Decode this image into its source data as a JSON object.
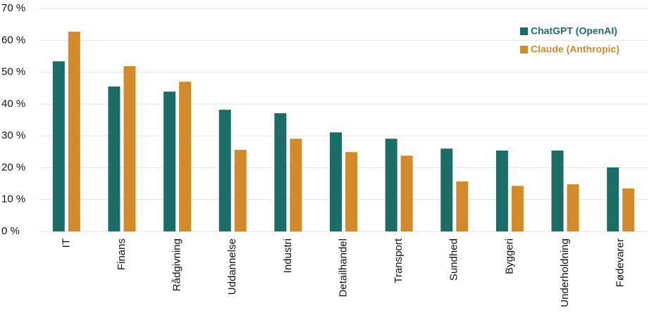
{
  "chart_data": {
    "type": "bar",
    "categories": [
      "IT",
      "Finans",
      "Rådgivning",
      "Uddannelse",
      "Industri",
      "Detailhandel",
      "Transport",
      "Sundhed",
      "Byggeri",
      "Underholdning",
      "Fødevarer"
    ],
    "series": [
      {
        "name": "ChatGPT (OpenAI)",
        "color": "#1b6e66",
        "values": [
          53.4,
          45.5,
          43.9,
          38.2,
          37.1,
          31.1,
          29.1,
          26.0,
          25.4,
          25.4,
          20.1
        ]
      },
      {
        "name": "Claude (Anthropic)",
        "color": "#d58a2a",
        "values": [
          62.7,
          51.9,
          47.0,
          25.6,
          29.1,
          24.9,
          23.8,
          15.7,
          14.3,
          14.8,
          13.5
        ]
      }
    ],
    "ylim": [
      0,
      70
    ],
    "yticks": [
      {
        "value": 0,
        "label": "0 %"
      },
      {
        "value": 10,
        "label": "10 %"
      },
      {
        "value": 20,
        "label": "20 %"
      },
      {
        "value": 30,
        "label": "30 %"
      },
      {
        "value": 40,
        "label": "40 %"
      },
      {
        "value": 50,
        "label": "50 %"
      },
      {
        "value": 60,
        "label": "60 %"
      },
      {
        "value": 70,
        "label": "70 %"
      }
    ],
    "grid": true,
    "legend": "upper right"
  }
}
